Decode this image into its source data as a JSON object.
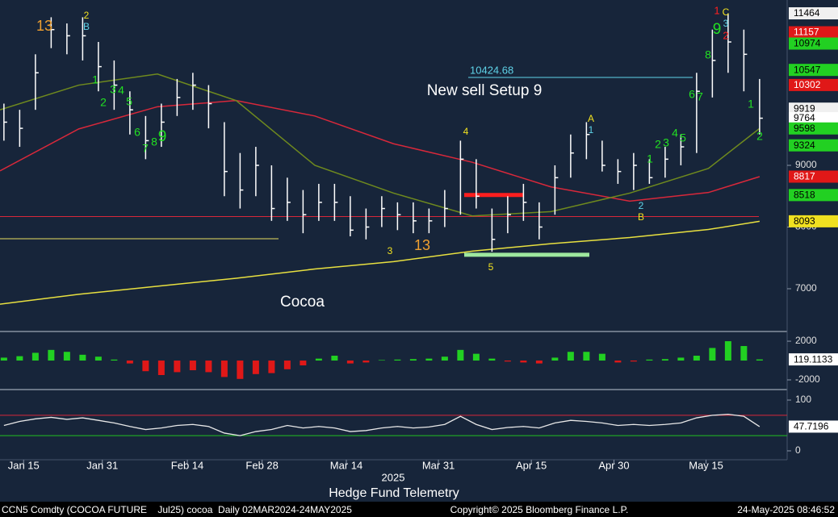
{
  "chart_data": [
    {
      "type": "ohlc",
      "title": "Cocoa",
      "annotation_main": "New sell Setup 9",
      "xlim": [
        0,
        100
      ],
      "xticks": [
        {
          "value": 3,
          "label": "Jan 15"
        },
        {
          "value": 13,
          "label": "Jan 31"
        },
        {
          "value": 23.8,
          "label": "Feb 14"
        },
        {
          "value": 33.3,
          "label": "Feb 28"
        },
        {
          "value": 44,
          "label": "Mar 14"
        },
        {
          "value": 55.7,
          "label": "Mar 31"
        },
        {
          "value": 67.5,
          "label": "Apr 15"
        },
        {
          "value": 78,
          "label": "Apr 30"
        },
        {
          "value": 89.7,
          "label": "May 15"
        }
      ],
      "ylim": [
        6320,
        11680
      ],
      "yticks": [
        7000,
        8000,
        9000
      ],
      "color": "#ffffff",
      "x": [
        0.5,
        2.5,
        4.5,
        6.5,
        8.5,
        10.5,
        12.5,
        14.5,
        16.5,
        18.5,
        20.5,
        22.5,
        24.5,
        26.5,
        28.5,
        30.5,
        32.5,
        34.5,
        36.5,
        38.5,
        40.5,
        42.5,
        44.5,
        46.5,
        48.5,
        50.5,
        52.5,
        54.5,
        56.5,
        58.5,
        60.5,
        62.5,
        64.5,
        66.5,
        68.5,
        70.5,
        72.5,
        74.5,
        76.5,
        78.5,
        80.5,
        82.5,
        84.5,
        86.5,
        88.5,
        90.5,
        92.5,
        94.5,
        96.5
      ],
      "high": [
        10000,
        9900,
        10800,
        11400,
        11300,
        11400,
        11000,
        10700,
        10200,
        9800,
        10000,
        10400,
        10500,
        10300,
        9700,
        9200,
        9300,
        9000,
        8800,
        8600,
        8700,
        8700,
        8500,
        8300,
        8500,
        8400,
        8400,
        8300,
        8600,
        9400,
        9100,
        8300,
        8500,
        8700,
        8400,
        9000,
        9500,
        9700,
        9400,
        9100,
        9200,
        9100,
        9300,
        9500,
        10500,
        11200,
        11464,
        11200,
        10400
      ],
      "low": [
        9400,
        9300,
        9900,
        10900,
        10800,
        10700,
        10200,
        9900,
        9500,
        9100,
        9300,
        9800,
        9900,
        9600,
        8500,
        8300,
        8500,
        8100,
        8100,
        7900,
        8100,
        8100,
        7850,
        7800,
        8000,
        7950,
        7900,
        7900,
        8000,
        8200,
        8300,
        7600,
        7900,
        8100,
        7800,
        8200,
        8800,
        9100,
        8900,
        8700,
        8600,
        8700,
        8800,
        9000,
        9200,
        10100,
        10500,
        10200,
        9500
      ],
      "close": [
        9700,
        9600,
        10500,
        11200,
        11100,
        11100,
        10600,
        10300,
        9900,
        9400,
        9700,
        10100,
        10300,
        10000,
        8900,
        8600,
        9000,
        8300,
        8400,
        8200,
        8400,
        8400,
        7950,
        8000,
        8300,
        8200,
        8100,
        8100,
        8300,
        9100,
        8500,
        7800,
        8200,
        8400,
        8000,
        8800,
        9200,
        9500,
        9000,
        8900,
        9000,
        8800,
        9100,
        9300,
        10200,
        10700,
        11000,
        10800,
        9764
      ],
      "series": [
        {
          "color": "#d8283a",
          "x": [
            0,
            10,
            20,
            30,
            40,
            50,
            60,
            70,
            80,
            90,
            96.5
          ],
          "values": [
            8910,
            9590,
            9950,
            10050,
            9800,
            9350,
            9050,
            8650,
            8420,
            8560,
            8817
          ]
        },
        {
          "color": "#e8e040",
          "x": [
            0,
            10,
            20,
            30,
            40,
            50,
            60,
            70,
            80,
            90,
            96.5
          ],
          "values": [
            6750,
            6910,
            7040,
            7170,
            7320,
            7440,
            7610,
            7730,
            7830,
            7960,
            8093
          ]
        },
        {
          "color": "#6f8a1e",
          "x": [
            0,
            10,
            20,
            30,
            40,
            50,
            60,
            70,
            80,
            90,
            96.5
          ],
          "values": [
            9900,
            10300,
            10480,
            10050,
            9000,
            8550,
            8180,
            8250,
            8550,
            8950,
            9598
          ]
        }
      ],
      "levels": [
        {
          "value": 10424.68,
          "color": "#5fd3e8"
        },
        {
          "value": 8170,
          "color": "#d8283a"
        },
        {
          "value": 7810,
          "color": "#e8e060"
        },
        {
          "value": 8520,
          "color": "#ff1e1e"
        },
        {
          "value": 7550,
          "color": "#9ee89e"
        }
      ],
      "price_labels": [
        {
          "value": 11464,
          "color": "#f0f0f0"
        },
        {
          "value": 11157,
          "color": "#e01818"
        },
        {
          "value": 10974,
          "color": "#22d022"
        },
        {
          "value": 10547,
          "color": "#22d022"
        },
        {
          "value": 10302,
          "color": "#e01818"
        },
        {
          "value": 9919,
          "color": "#f0f0f0"
        },
        {
          "value": 9764,
          "color": "#ffffff"
        },
        {
          "value": 9598,
          "color": "#22d022"
        },
        {
          "value": 9324,
          "color": "#22d022"
        },
        {
          "value": 8817,
          "color": "#e01818"
        },
        {
          "value": 8518,
          "color": "#22d022"
        },
        {
          "value": 8093,
          "color": "#f0e020"
        }
      ],
      "annotations": [
        {
          "text": "13",
          "color": "#f0a030"
        },
        {
          "text": "2",
          "color": "#f0e020"
        },
        {
          "text": "B",
          "color": "#5fd3e8"
        },
        {
          "text": "1",
          "color": "#22e022"
        },
        {
          "text": "2",
          "color": "#22e022"
        },
        {
          "text": "3",
          "color": "#22e022"
        },
        {
          "text": "4",
          "color": "#22e022"
        },
        {
          "text": "5",
          "color": "#22e022"
        },
        {
          "text": "6",
          "color": "#22e022"
        },
        {
          "text": "7",
          "color": "#22e022"
        },
        {
          "text": "8",
          "color": "#22e022"
        },
        {
          "text": "9",
          "color": "#22e022"
        },
        {
          "text": "3",
          "color": "#f0e020"
        },
        {
          "text": "13",
          "color": "#f0a030"
        },
        {
          "text": "4",
          "color": "#f0e020"
        },
        {
          "text": "5",
          "color": "#f0e020"
        },
        {
          "text": "A",
          "color": "#f0e020"
        },
        {
          "text": "1",
          "color": "#5fd3e8"
        },
        {
          "text": "2",
          "color": "#5fd3e8"
        },
        {
          "text": "B",
          "color": "#f0e020"
        },
        {
          "text": "1",
          "color": "#22e022"
        },
        {
          "text": "2",
          "color": "#22e022"
        },
        {
          "text": "3",
          "color": "#22e022"
        },
        {
          "text": "4",
          "color": "#22e022"
        },
        {
          "text": "5",
          "color": "#22e022"
        },
        {
          "text": "6",
          "color": "#22e022"
        },
        {
          "text": "7",
          "color": "#22e022"
        },
        {
          "text": "8",
          "color": "#22e022"
        },
        {
          "text": "9",
          "color": "#22e022"
        },
        {
          "text": "1",
          "color": "#ff2020"
        },
        {
          "text": "C",
          "color": "#f0e020"
        },
        {
          "text": "3",
          "color": "#5fd3e8"
        },
        {
          "text": "2",
          "color": "#ff2020"
        },
        {
          "text": "1",
          "color": "#22e022"
        },
        {
          "text": "2",
          "color": "#22e022"
        }
      ]
    },
    {
      "type": "bar",
      "ylim": [
        -2750,
        2920
      ],
      "yticks": [
        2000,
        -2000
      ],
      "color": "#22d022",
      "negative_color": "#e01818",
      "x": [
        0.5,
        2.5,
        4.5,
        6.5,
        8.5,
        10.5,
        12.5,
        14.5,
        16.5,
        18.5,
        20.5,
        22.5,
        24.5,
        26.5,
        28.5,
        30.5,
        32.5,
        34.5,
        36.5,
        38.5,
        40.5,
        42.5,
        44.5,
        46.5,
        48.5,
        50.5,
        52.5,
        54.5,
        56.5,
        58.5,
        60.5,
        62.5,
        64.5,
        66.5,
        68.5,
        70.5,
        72.5,
        74.5,
        76.5,
        78.5,
        80.5,
        82.5,
        84.5,
        86.5,
        88.5,
        90.5,
        92.5,
        94.5,
        96.5
      ],
      "values": [
        300,
        450,
        800,
        1100,
        900,
        600,
        400,
        100,
        -300,
        -1100,
        -1500,
        -1200,
        -1000,
        -1200,
        -1700,
        -1900,
        -1400,
        -1300,
        -900,
        -500,
        200,
        500,
        -300,
        -200,
        50,
        100,
        150,
        200,
        400,
        1100,
        700,
        200,
        -100,
        -200,
        -300,
        300,
        900,
        900,
        700,
        -200,
        -100,
        100,
        150,
        300,
        500,
        1300,
        2000,
        1500,
        119.1133
      ]
    },
    {
      "type": "line",
      "ylim": [
        -17.5,
        117.5
      ],
      "yticks": [
        100,
        0
      ],
      "color": "#e8e8e8",
      "ref_lines": [
        {
          "value": 70,
          "color": "#d8283a"
        },
        {
          "value": 30,
          "color": "#22c022"
        }
      ],
      "x": [
        0.5,
        2.5,
        4.5,
        6.5,
        8.5,
        10.5,
        12.5,
        14.5,
        16.5,
        18.5,
        20.5,
        22.5,
        24.5,
        26.5,
        28.5,
        30.5,
        32.5,
        34.5,
        36.5,
        38.5,
        40.5,
        42.5,
        44.5,
        46.5,
        48.5,
        50.5,
        52.5,
        54.5,
        56.5,
        58.5,
        60.5,
        62.5,
        64.5,
        66.5,
        68.5,
        70.5,
        72.5,
        74.5,
        76.5,
        78.5,
        80.5,
        82.5,
        84.5,
        86.5,
        88.5,
        90.5,
        92.5,
        94.5,
        96.5
      ],
      "values": [
        50,
        58,
        63,
        66,
        62,
        65,
        60,
        55,
        48,
        42,
        45,
        50,
        52,
        48,
        35,
        30,
        38,
        42,
        50,
        45,
        48,
        45,
        38,
        40,
        45,
        48,
        45,
        47,
        52,
        68,
        52,
        42,
        46,
        48,
        45,
        55,
        60,
        58,
        55,
        50,
        52,
        50,
        52,
        55,
        65,
        70,
        72,
        68,
        47.7196
      ]
    }
  ],
  "footer": {
    "year": "2025",
    "source": "Hedge Fund Telemetry",
    "left": "CCN5 Comdty (COCOA FUTURE    Jul25) cocoa  Daily 02MAR2024-24MAY2025",
    "center": "Copyright© 2025 Bloomberg Finance L.P.",
    "right": "24-May-2025 08:46:52"
  }
}
